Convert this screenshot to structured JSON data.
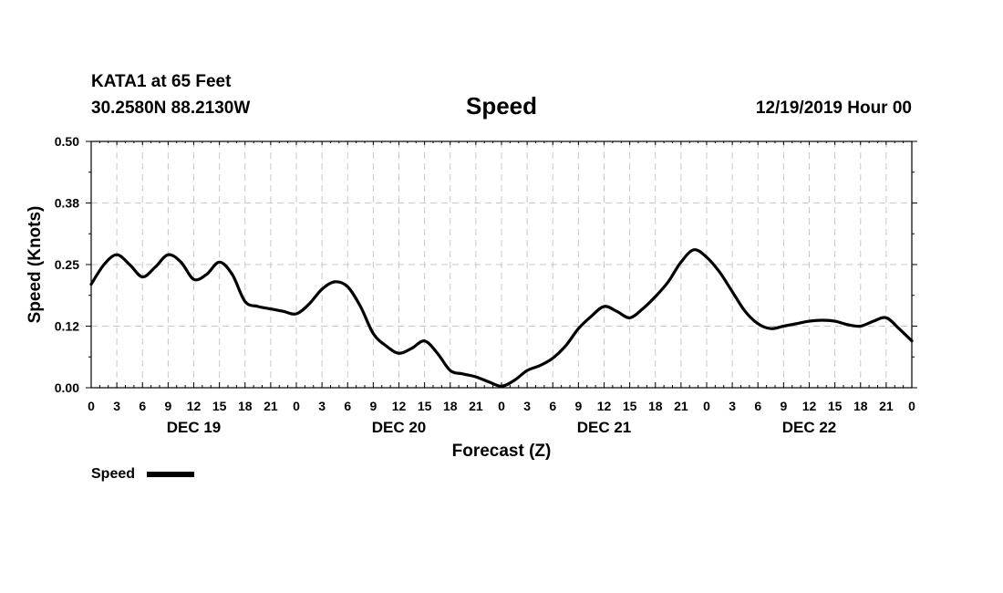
{
  "header": {
    "station": "KATA1 at 65 Feet",
    "location": "30.2580N 88.2130W",
    "title": "Speed",
    "run": "12/19/2019 Hour 00"
  },
  "chart_data": {
    "type": "line",
    "title": "Speed",
    "xlabel": "Forecast (Z)",
    "ylabel": "Speed (Knots)",
    "ylim": [
      0,
      0.5
    ],
    "yticks": [
      "0.00",
      "0.12",
      "0.25",
      "0.38",
      "0.50"
    ],
    "x_hours_range": [
      0,
      96
    ],
    "x_tick_labels": [
      "0",
      "3",
      "6",
      "9",
      "12",
      "15",
      "18",
      "21",
      "0",
      "3",
      "6",
      "9",
      "12",
      "15",
      "18",
      "21",
      "0",
      "3",
      "6",
      "9",
      "12",
      "15",
      "18",
      "21",
      "0",
      "3",
      "6",
      "9",
      "12",
      "15",
      "18",
      "21",
      "0"
    ],
    "day_labels": [
      {
        "label": "DEC 19",
        "hour": 12
      },
      {
        "label": "DEC 20",
        "hour": 36
      },
      {
        "label": "DEC 21",
        "hour": 60
      },
      {
        "label": "DEC 22",
        "hour": 84
      }
    ],
    "grid": true,
    "legend": {
      "label": "Speed",
      "placement": "bottom-left",
      "color": "#000000"
    },
    "series": [
      {
        "name": "Speed",
        "color": "#000000",
        "x": [
          0,
          1.5,
          3,
          4.5,
          6,
          7.5,
          9,
          10.5,
          12,
          13.5,
          15,
          16.5,
          18,
          19.5,
          21,
          22.5,
          24,
          25.5,
          27,
          28.5,
          30,
          31.5,
          33,
          34.5,
          36,
          37.5,
          39,
          40.5,
          42,
          43.5,
          45,
          46.5,
          48,
          49.5,
          51,
          52.5,
          54,
          55.5,
          57,
          58.5,
          60,
          61.5,
          63,
          64.5,
          66,
          67.5,
          69,
          70.5,
          72,
          73.5,
          75,
          76.5,
          78,
          79.5,
          81,
          82.5,
          84,
          85.5,
          87,
          88.5,
          90,
          91.5,
          93,
          94.5,
          96
        ],
        "values": [
          0.21,
          0.25,
          0.27,
          0.25,
          0.225,
          0.245,
          0.27,
          0.255,
          0.22,
          0.23,
          0.255,
          0.23,
          0.175,
          0.165,
          0.16,
          0.155,
          0.15,
          0.17,
          0.2,
          0.215,
          0.205,
          0.165,
          0.11,
          0.085,
          0.07,
          0.08,
          0.095,
          0.07,
          0.035,
          0.028,
          0.022,
          0.012,
          0.003,
          0.015,
          0.035,
          0.045,
          0.06,
          0.085,
          0.12,
          0.145,
          0.165,
          0.155,
          0.142,
          0.16,
          0.185,
          0.215,
          0.255,
          0.28,
          0.265,
          0.235,
          0.195,
          0.155,
          0.13,
          0.12,
          0.125,
          0.13,
          0.135,
          0.137,
          0.135,
          0.128,
          0.125,
          0.135,
          0.142,
          0.12,
          0.095
        ]
      }
    ]
  }
}
